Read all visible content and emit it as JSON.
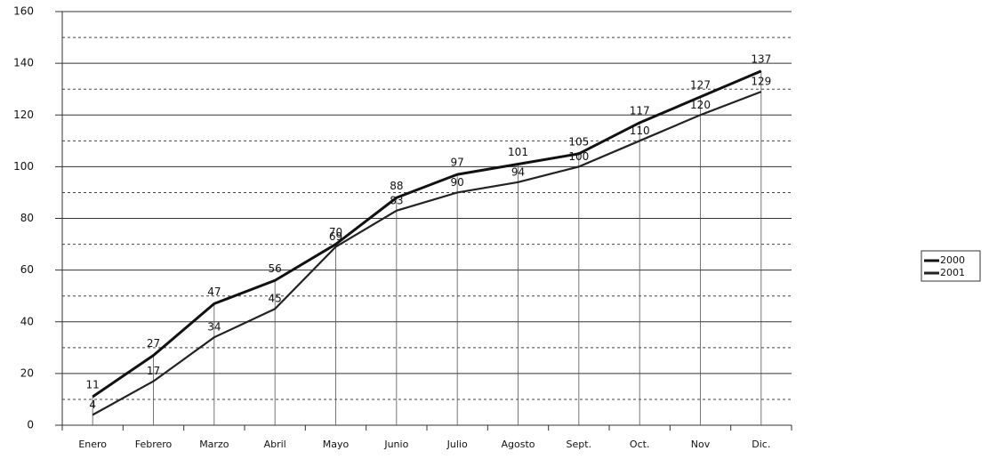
{
  "chart_data": {
    "type": "line",
    "categories": [
      "Enero",
      "Febrero",
      "Marzo",
      "Abril",
      "Mayo",
      "Junio",
      "Julio",
      "Agosto",
      "Sept.",
      "Oct.",
      "Nov",
      "Dic."
    ],
    "series": [
      {
        "name": "2000",
        "color": "#111111",
        "values": [
          11,
          27,
          47,
          56,
          70,
          88,
          97,
          101,
          105,
          117,
          127,
          137
        ]
      },
      {
        "name": "2001",
        "color": "#222222",
        "values": [
          4,
          17,
          34,
          45,
          69,
          83,
          90,
          94,
          100,
          110,
          120,
          129
        ]
      }
    ],
    "ylim": [
      0,
      160
    ],
    "yticks": [
      0,
      20,
      40,
      60,
      80,
      100,
      120,
      140,
      160
    ],
    "grid": true,
    "legend": "right"
  }
}
